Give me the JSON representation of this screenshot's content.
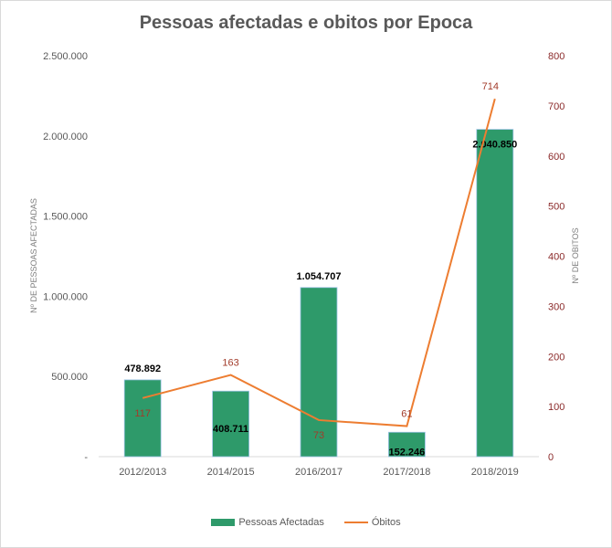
{
  "chart_data": {
    "type": "bar+line",
    "title": "Pessoas afectadas e obitos por Epoca",
    "categories": [
      "2012/2013",
      "2014/2015",
      "2016/2017",
      "2017/2018",
      "2018/2019"
    ],
    "series": [
      {
        "name": "Pessoas Afectadas",
        "type": "bar",
        "axis": "left",
        "values": [
          478892,
          408711,
          1054707,
          152246,
          2040850
        ],
        "labels": [
          "478.892",
          "408.711",
          "1.054.707",
          "152.246",
          "2.040.850"
        ],
        "color": "#2e9a6a"
      },
      {
        "name": "Óbitos",
        "type": "line",
        "axis": "right",
        "values": [
          117,
          163,
          73,
          61,
          714
        ],
        "labels": [
          "117",
          "163",
          "73",
          "61",
          "714"
        ],
        "color": "#ed7d31"
      }
    ],
    "ylabel_left": "Nº DE PESSOAS AFECTADAS",
    "ylabel_right": "Nº DE OBITOS",
    "ylim_left": [
      0,
      2500000
    ],
    "ylim_right": [
      0,
      800
    ],
    "yticks_left": [
      "-",
      "500.000",
      "1.000.000",
      "1.500.000",
      "2.000.000",
      "2.500.000"
    ],
    "yticks_right": [
      "0",
      "100",
      "200",
      "300",
      "400",
      "500",
      "600",
      "700",
      "800"
    ],
    "grid": false,
    "legend": "bottom"
  }
}
